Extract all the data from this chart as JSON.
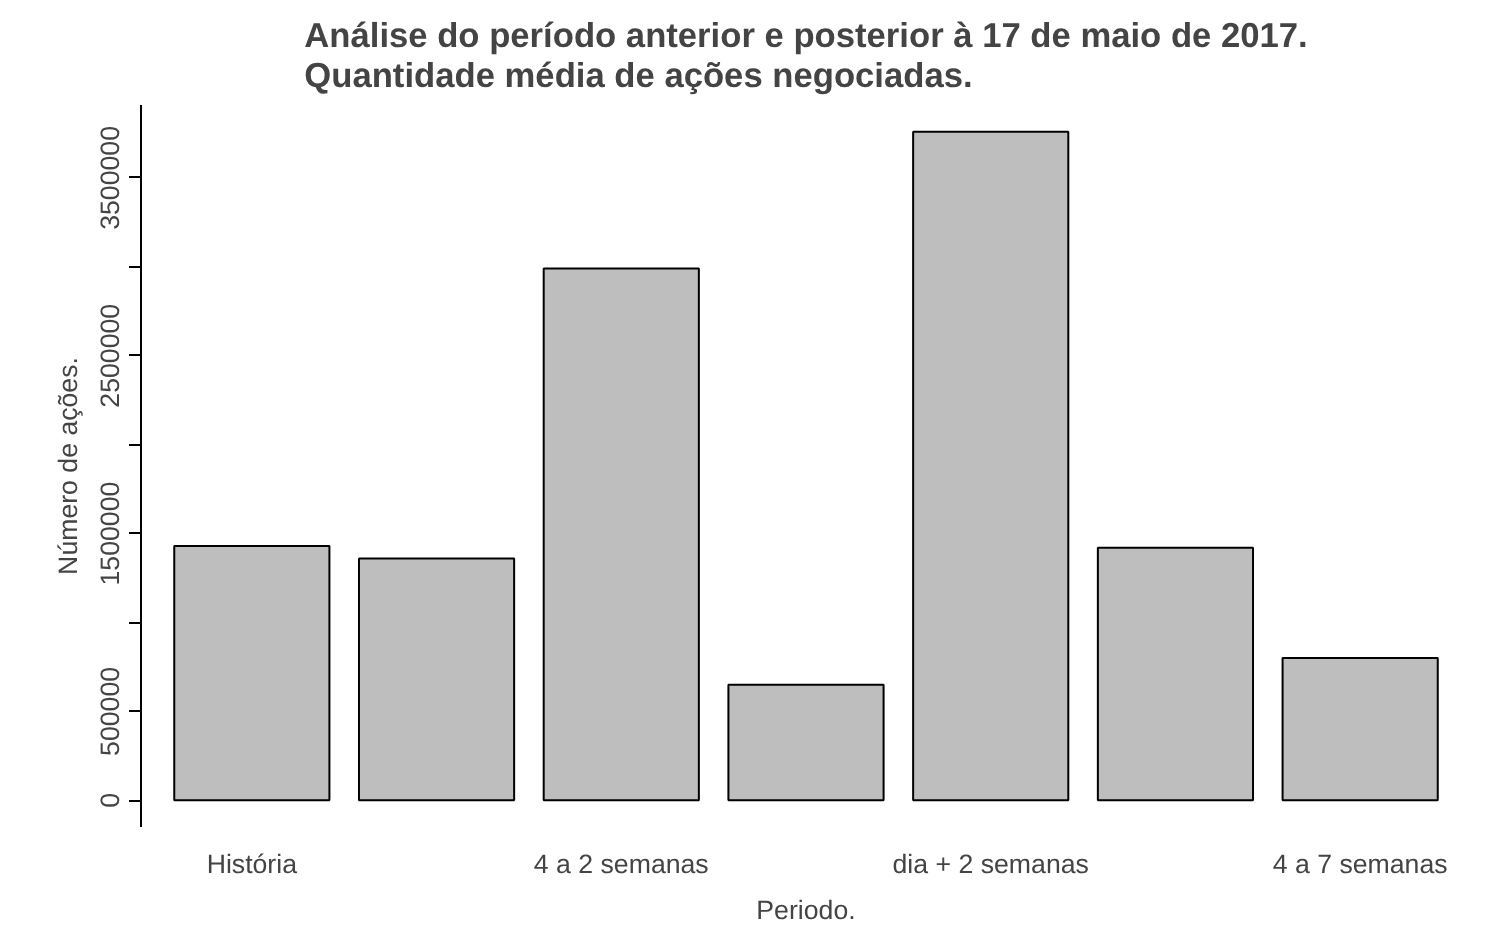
{
  "chart_data": {
    "type": "bar",
    "title": "Análise do período anterior e posterior à 17 de maio de 2017.\nQuantidade média de ações negociadas.",
    "xlabel": "Periodo.",
    "ylabel": "Número de ações.",
    "categories": [
      "História",
      null,
      "4 a 2 semanas",
      null,
      "dia + 2 semanas",
      null,
      "4 a 7 semanas"
    ],
    "values": [
      1430000,
      1360000,
      2990000,
      650000,
      3760000,
      1420000,
      800000
    ],
    "color": "#bebebe",
    "ylim": [
      -150000,
      3910000
    ],
    "yticks": [
      0,
      500000,
      {
        "value": 1000000,
        "label": null
      },
      1500000,
      {
        "value": 2000000,
        "label": null
      },
      2500000,
      {
        "value": 3000000,
        "label": null
      },
      3500000
    ],
    "grid": false
  }
}
